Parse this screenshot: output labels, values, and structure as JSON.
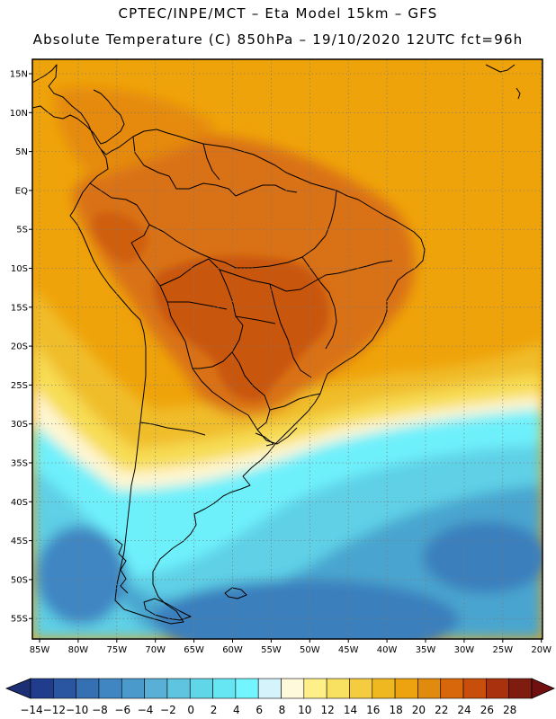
{
  "header": {
    "title_line1": "CPTEC/INPE/MCT –  Eta Model 15km – GFS",
    "title_line2": "Absolute Temperature (C) 850hPa – 19/10/2020 12UTC fct=96h"
  },
  "map": {
    "lat_labels": [
      "15N",
      "10N",
      "5N",
      "EQ",
      "5S",
      "10S",
      "15S",
      "20S",
      "25S",
      "30S",
      "35S",
      "40S",
      "45S",
      "50S",
      "55S"
    ],
    "lon_labels": [
      "85W",
      "80W",
      "75W",
      "70W",
      "65W",
      "60W",
      "55W",
      "50W",
      "45W",
      "40W",
      "35W",
      "30W",
      "25W",
      "20W"
    ],
    "ocean_color": "#efa30a",
    "continent_color": "#d97113",
    "interior_hot_color": "#c9560f",
    "land_outline_color": "#000000"
  },
  "colorbar": {
    "labels": [
      "-14",
      "-12",
      "-10",
      "-8",
      "-6",
      "-4",
      "-2",
      "0",
      "2",
      "4",
      "6",
      "8",
      "10",
      "12",
      "14",
      "16",
      "18",
      "20",
      "22",
      "24",
      "26",
      "28"
    ],
    "colors": [
      "#203c8c",
      "#2a55a0",
      "#3570b3",
      "#3f86c2",
      "#4a9bcc",
      "#58b0d6",
      "#5ec4e0",
      "#61d6e9",
      "#66e6f2",
      "#72f5ff",
      "#d5f3fb",
      "#fff9dc",
      "#ffef88",
      "#f8e060",
      "#f5cc40",
      "#f0b820",
      "#eda30f",
      "#e08b0d",
      "#d8660a",
      "#c84e0c",
      "#a9310d",
      "#7e1c0f"
    ],
    "left_arrow_color": "#1c2f75",
    "right_arrow_color": "#701010"
  }
}
